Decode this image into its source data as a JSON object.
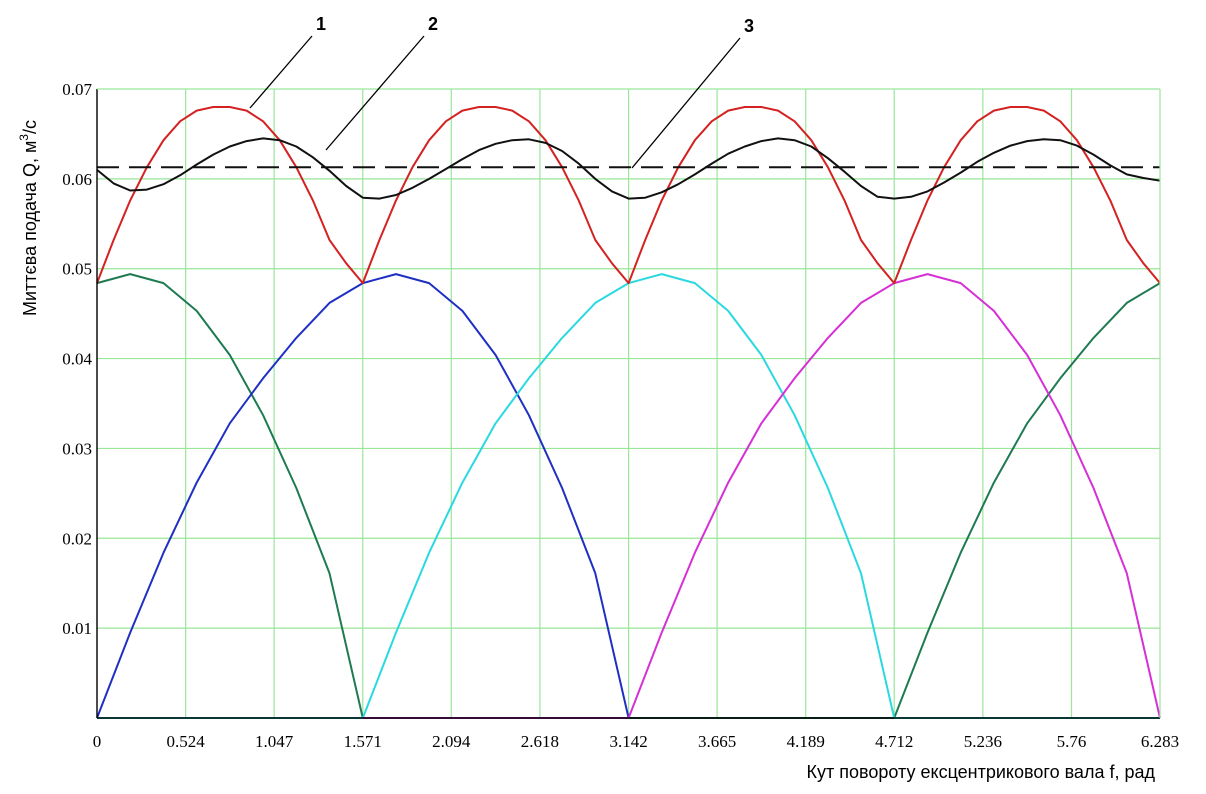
{
  "chart_data": {
    "type": "line",
    "title": "",
    "xlabel": "Кут повороту ексцентрикового вала f, рад",
    "ylabel": "Миттєва подача Q, м³/с",
    "ylabel_parts": {
      "main": "Миттєва подача Q, м",
      "sup": "3",
      "tail": "/c"
    },
    "xlim": [
      0,
      6.283
    ],
    "ylim": [
      0,
      0.07
    ],
    "grid": true,
    "grid_color": "#99e699",
    "x_ticks": [
      0,
      0.524,
      1.047,
      1.571,
      2.094,
      2.618,
      3.142,
      3.665,
      4.189,
      4.712,
      5.236,
      5.76,
      6.283
    ],
    "x_tick_labels": [
      "0",
      "0.524",
      "1.047",
      "1.571",
      "2.094",
      "2.618",
      "3.142",
      "3.665",
      "4.189",
      "4.712",
      "5.236",
      "5.76",
      "6.283"
    ],
    "y_ticks": [
      0.01,
      0.02,
      0.03,
      0.04,
      0.05,
      0.06,
      0.07
    ],
    "y_tick_labels": [
      "0.01",
      "0.02",
      "0.03",
      "0.04",
      "0.05",
      "0.06",
      "0.07"
    ],
    "callouts": [
      {
        "label": "1",
        "series": "red"
      },
      {
        "label": "2",
        "series": "black"
      },
      {
        "label": "3",
        "series": "dashed"
      }
    ],
    "series": [
      {
        "key": "dark-green",
        "color": "#1e7a52",
        "x": [
          0,
          0.196,
          0.393,
          0.589,
          0.785,
          0.982,
          1.178,
          1.374,
          1.571,
          4.712,
          4.909,
          5.105,
          5.301,
          5.498,
          5.694,
          5.89,
          6.087,
          6.283
        ],
        "y": [
          0.0484,
          0.0494,
          0.0484,
          0.0453,
          0.0404,
          0.0337,
          0.0256,
          0.0161,
          0.0,
          0.0,
          0.0095,
          0.0184,
          0.0262,
          0.0328,
          0.0378,
          0.0423,
          0.0462,
          0.0484
        ]
      },
      {
        "key": "blue",
        "color": "#1f2fc4",
        "x": [
          0,
          0.196,
          0.393,
          0.589,
          0.785,
          0.982,
          1.178,
          1.374,
          1.571,
          1.767,
          1.963,
          2.16,
          2.356,
          2.553,
          2.749,
          2.945,
          3.142
        ],
        "y": [
          0.0,
          0.0095,
          0.0184,
          0.0262,
          0.0328,
          0.0378,
          0.0423,
          0.0462,
          0.0484,
          0.0494,
          0.0484,
          0.0453,
          0.0404,
          0.0337,
          0.0256,
          0.0161,
          0.0
        ]
      },
      {
        "key": "cyan",
        "color": "#2ad9e0",
        "x": [
          1.571,
          1.767,
          1.963,
          2.16,
          2.356,
          2.553,
          2.749,
          2.945,
          3.142,
          3.338,
          3.534,
          3.731,
          3.927,
          4.123,
          4.32,
          4.516,
          4.712
        ],
        "y": [
          0.0,
          0.0095,
          0.0184,
          0.0262,
          0.0328,
          0.0378,
          0.0423,
          0.0462,
          0.0484,
          0.0494,
          0.0484,
          0.0453,
          0.0404,
          0.0337,
          0.0256,
          0.0161,
          0.0
        ]
      },
      {
        "key": "magenta",
        "color": "#d62fd6",
        "x": [
          3.142,
          3.338,
          3.534,
          3.731,
          3.927,
          4.123,
          4.32,
          4.516,
          4.712,
          4.909,
          5.105,
          5.301,
          5.498,
          5.694,
          5.89,
          6.087,
          6.283
        ],
        "y": [
          0.0,
          0.0095,
          0.0184,
          0.0262,
          0.0328,
          0.0378,
          0.0423,
          0.0462,
          0.0484,
          0.0494,
          0.0484,
          0.0453,
          0.0404,
          0.0337,
          0.0256,
          0.0161,
          0.0
        ]
      },
      {
        "key": "cyan-baseline",
        "color": "#2ad9e0",
        "x": [
          0,
          1.571
        ],
        "y": [
          0.0,
          0.0
        ]
      },
      {
        "key": "magenta-baseline",
        "color": "#d62fd6",
        "x": [
          1.571,
          3.142
        ],
        "y": [
          0.0,
          0.0
        ]
      },
      {
        "key": "dark-green-baseline",
        "color": "#1e7a52",
        "x": [
          3.142,
          4.712
        ],
        "y": [
          0.0,
          0.0
        ]
      },
      {
        "key": "cyan-baseline-2",
        "color": "#2ad9e0",
        "x": [
          4.712,
          6.283
        ],
        "y": [
          0.0,
          0.0
        ]
      },
      {
        "key": "red",
        "color": "#d42121",
        "x": [
          0,
          0.098,
          0.196,
          0.295,
          0.393,
          0.491,
          0.589,
          0.687,
          0.785,
          0.884,
          0.982,
          1.08,
          1.178,
          1.276,
          1.374,
          1.473,
          1.571,
          1.669,
          1.767,
          1.865,
          1.963,
          2.062,
          2.16,
          2.258,
          2.356,
          2.454,
          2.553,
          2.651,
          2.749,
          2.847,
          2.945,
          3.044,
          3.142,
          3.24,
          3.338,
          3.436,
          3.534,
          3.633,
          3.731,
          3.829,
          3.927,
          4.025,
          4.123,
          4.222,
          4.32,
          4.418,
          4.516,
          4.614,
          4.712,
          4.811,
          4.909,
          5.007,
          5.105,
          5.203,
          5.301,
          5.4,
          5.498,
          5.596,
          5.694,
          5.792,
          5.89,
          5.989,
          6.087,
          6.185,
          6.283
        ],
        "y": [
          0.0484,
          0.0532,
          0.0576,
          0.0613,
          0.0643,
          0.0664,
          0.0676,
          0.068,
          0.068,
          0.0676,
          0.0664,
          0.0643,
          0.0613,
          0.0576,
          0.0532,
          0.0506,
          0.0484,
          0.0532,
          0.0576,
          0.0613,
          0.0643,
          0.0664,
          0.0676,
          0.068,
          0.068,
          0.0676,
          0.0664,
          0.0643,
          0.0613,
          0.0576,
          0.0532,
          0.0506,
          0.0484,
          0.0532,
          0.0576,
          0.0613,
          0.0643,
          0.0664,
          0.0676,
          0.068,
          0.068,
          0.0676,
          0.0664,
          0.0643,
          0.0613,
          0.0576,
          0.0532,
          0.0506,
          0.0484,
          0.0532,
          0.0576,
          0.0613,
          0.0643,
          0.0664,
          0.0676,
          0.068,
          0.068,
          0.0676,
          0.0664,
          0.0643,
          0.0613,
          0.0576,
          0.0532,
          0.0506,
          0.0484
        ]
      },
      {
        "key": "black",
        "color": "#111111",
        "x": [
          0,
          0.098,
          0.196,
          0.295,
          0.393,
          0.491,
          0.589,
          0.687,
          0.785,
          0.884,
          0.982,
          1.08,
          1.178,
          1.276,
          1.374,
          1.473,
          1.571,
          1.669,
          1.767,
          1.865,
          1.963,
          2.062,
          2.16,
          2.258,
          2.356,
          2.454,
          2.553,
          2.651,
          2.749,
          2.847,
          2.945,
          3.044,
          3.142,
          3.24,
          3.338,
          3.436,
          3.534,
          3.633,
          3.731,
          3.829,
          3.927,
          4.025,
          4.123,
          4.222,
          4.32,
          4.418,
          4.516,
          4.614,
          4.712,
          4.811,
          4.909,
          5.007,
          5.105,
          5.203,
          5.301,
          5.4,
          5.498,
          5.596,
          5.694,
          5.792,
          5.89,
          5.989,
          6.087,
          6.185,
          6.283
        ],
        "y": [
          0.061,
          0.0595,
          0.0587,
          0.0588,
          0.0594,
          0.0604,
          0.0616,
          0.0627,
          0.0636,
          0.0642,
          0.0645,
          0.0643,
          0.0636,
          0.0624,
          0.0609,
          0.0592,
          0.0579,
          0.0578,
          0.0582,
          0.059,
          0.06,
          0.0611,
          0.0622,
          0.0632,
          0.0639,
          0.0643,
          0.0644,
          0.064,
          0.0631,
          0.0617,
          0.06,
          0.0586,
          0.0578,
          0.0579,
          0.0585,
          0.0594,
          0.0605,
          0.0617,
          0.0628,
          0.0636,
          0.0642,
          0.0645,
          0.0643,
          0.0636,
          0.0623,
          0.0608,
          0.0592,
          0.058,
          0.0578,
          0.058,
          0.0586,
          0.0596,
          0.0607,
          0.0619,
          0.0629,
          0.0637,
          0.0642,
          0.0644,
          0.0643,
          0.0637,
          0.0627,
          0.0615,
          0.0605,
          0.0601,
          0.0598
        ]
      },
      {
        "key": "dashed",
        "color": "#111111",
        "dashed": true,
        "x": [
          0,
          6.283
        ],
        "y": [
          0.0613,
          0.0613
        ]
      }
    ]
  }
}
